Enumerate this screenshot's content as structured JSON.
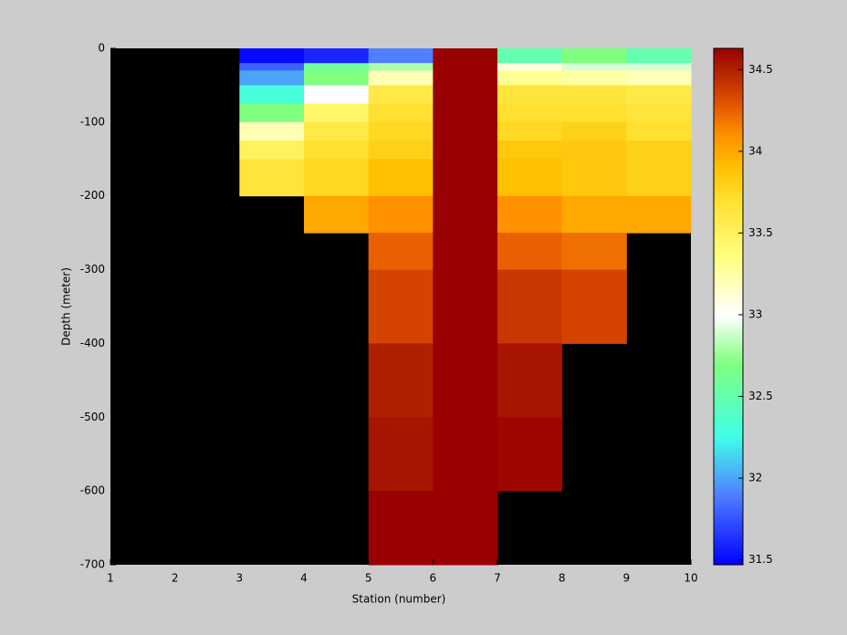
{
  "chart_data": {
    "type": "heatmap",
    "xlabel": "Station (number)",
    "ylabel": "Depth (meter)",
    "xbins": [
      1,
      2,
      3,
      4,
      5,
      6,
      7,
      8,
      9,
      10
    ],
    "ybins": [
      0,
      -20,
      -30,
      -50,
      -75,
      -100,
      -125,
      -150,
      -200,
      -250,
      -300,
      -400,
      -500,
      -600,
      -700
    ],
    "xlim": [
      1,
      10
    ],
    "xticks": [
      1,
      2,
      3,
      4,
      5,
      6,
      7,
      8,
      9,
      10
    ],
    "ylim": [
      -700,
      0
    ],
    "yticks": [
      0,
      -100,
      -200,
      -300,
      -400,
      -500,
      -600,
      -700
    ],
    "z": [
      [
        null,
        null,
        31.5,
        31.6,
        31.9,
        34.63,
        32.5,
        32.7,
        32.5
      ],
      [
        null,
        null,
        31.8,
        32.6,
        32.8,
        34.63,
        33.1,
        32.9,
        32.9
      ],
      [
        null,
        null,
        32.0,
        32.7,
        33.2,
        34.63,
        33.3,
        33.25,
        33.2
      ],
      [
        null,
        null,
        32.3,
        33.0,
        33.6,
        34.63,
        33.65,
        33.65,
        33.6
      ],
      [
        null,
        null,
        32.7,
        33.45,
        33.7,
        34.63,
        33.7,
        33.7,
        33.65
      ],
      [
        null,
        null,
        33.2,
        33.6,
        33.75,
        34.63,
        33.75,
        33.8,
        33.7
      ],
      [
        null,
        null,
        33.5,
        33.7,
        33.8,
        34.63,
        33.85,
        33.85,
        33.8
      ],
      [
        null,
        null,
        33.65,
        33.75,
        33.9,
        34.63,
        33.9,
        33.85,
        33.8
      ],
      [
        null,
        null,
        null,
        34.0,
        34.1,
        34.63,
        34.1,
        34.0,
        34.0
      ],
      [
        null,
        null,
        null,
        null,
        34.25,
        34.63,
        34.25,
        34.2,
        null
      ],
      [
        null,
        null,
        null,
        null,
        34.35,
        34.63,
        34.4,
        34.35,
        null
      ],
      [
        null,
        null,
        null,
        null,
        34.5,
        34.63,
        34.55,
        null,
        null
      ],
      [
        null,
        null,
        null,
        null,
        34.55,
        34.63,
        34.6,
        null,
        null
      ],
      [
        null,
        null,
        null,
        null,
        34.63,
        34.63,
        null,
        null,
        null
      ]
    ],
    "missing_color": "#000000",
    "clim": [
      31.47,
      34.63
    ],
    "cticks": [
      31.5,
      32,
      32.5,
      33,
      33.5,
      34,
      34.5
    ],
    "colormap": [
      [
        31.47,
        "#0000ff"
      ],
      [
        31.9,
        "#5080ff"
      ],
      [
        32.25,
        "#40ffe8"
      ],
      [
        32.7,
        "#80ff80"
      ],
      [
        33.0,
        "#ffffff"
      ],
      [
        33.35,
        "#ffff80"
      ],
      [
        33.7,
        "#ffe030"
      ],
      [
        33.9,
        "#ffc000"
      ],
      [
        34.1,
        "#ff9000"
      ],
      [
        34.3,
        "#e05000"
      ],
      [
        34.5,
        "#b02000"
      ],
      [
        34.63,
        "#990000"
      ]
    ]
  }
}
